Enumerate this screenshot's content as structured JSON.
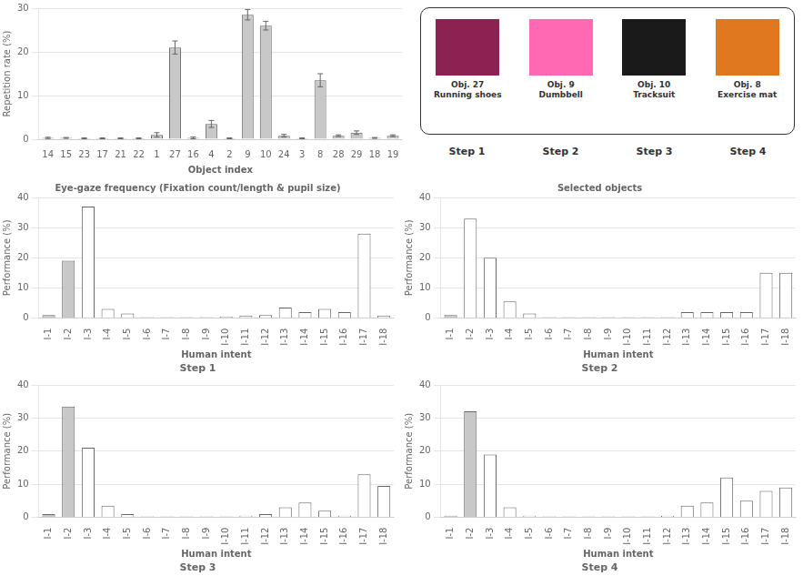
{
  "chart_data": [
    {
      "type": "bar",
      "categories": [
        "14",
        "15",
        "23",
        "17",
        "21",
        "22",
        "1",
        "27",
        "16",
        "4",
        "2",
        "9",
        "10",
        "24",
        "3",
        "8",
        "28",
        "29",
        "18",
        "19"
      ],
      "values": [
        0.3,
        0.3,
        0.2,
        0.2,
        0.2,
        0.2,
        1.0,
        21.0,
        0.3,
        3.5,
        0.2,
        28.5,
        26.0,
        0.8,
        0.2,
        13.5,
        0.8,
        1.5,
        0.3,
        0.8
      ],
      "errors": [
        0.15,
        0.1,
        0.1,
        0.1,
        0.1,
        0.1,
        0.5,
        1.5,
        0.2,
        0.8,
        0.1,
        1.2,
        1.0,
        0.3,
        0.1,
        1.5,
        0.2,
        0.4,
        0.1,
        0.2
      ],
      "color": "#c8c8c8",
      "xlabel": "Object index",
      "ylabel": "Repetition rate (%)",
      "ylim": [
        0,
        30
      ],
      "yticks": [
        0,
        10,
        20,
        30
      ],
      "grid": true
    },
    {
      "type": "legend_panel",
      "categories": [
        "Obj. 27\nRunning shoes",
        "Obj. 9\nDumbbell",
        "Obj. 10\nTracksuit",
        "Obj. 8\nExercise mat"
      ],
      "colors": [
        "#8B2252",
        "#FF69B4",
        "#1a1a1a",
        "#E07820"
      ],
      "annotations": [
        "Step 1",
        "Step 2",
        "Step 3",
        "Step 4"
      ]
    },
    {
      "type": "bar",
      "title": "Eye-gaze frequency (Fixation count/length & pupil size)",
      "categories": [
        "I-1",
        "I-2",
        "I-3",
        "I-4",
        "I-5",
        "I-6",
        "I-7",
        "I-8",
        "I-9",
        "I-10",
        "I-11",
        "I-12",
        "I-13",
        "I-14",
        "I-15",
        "I-16",
        "I-17",
        "I-18"
      ],
      "values": [
        1.0,
        19.0,
        37.0,
        3.0,
        1.5,
        0.3,
        0.3,
        0.3,
        0.3,
        0.5,
        0.8,
        1.0,
        3.5,
        2.0,
        3.0,
        2.0,
        28.0,
        0.8
      ],
      "colors": [
        "#c8c8c8",
        "#c8c8c8",
        "#ffffff",
        "#ffffff",
        "#ffffff",
        "#ffffff",
        "#ffffff",
        "#ffffff",
        "#ffffff",
        "#ffffff",
        "#ffffff",
        "#ffffff",
        "#ffffff",
        "#ffffff",
        "#ffffff",
        "#ffffff",
        "#ffffff",
        "#ffffff"
      ],
      "xlabel": "Human intent",
      "ylabel": "Performance (%)",
      "ylim": [
        0,
        40
      ],
      "yticks": [
        0,
        10,
        20,
        30,
        40
      ],
      "grid": true,
      "annotations": [
        "Step 1"
      ]
    },
    {
      "type": "bar",
      "title": "Selected objects",
      "categories": [
        "I-1",
        "I-2",
        "I-3",
        "I-4",
        "I-5",
        "I-6",
        "I-7",
        "I-8",
        "I-9",
        "I-10",
        "I-11",
        "I-12",
        "I-13",
        "I-14",
        "I-15",
        "I-16",
        "I-17",
        "I-18"
      ],
      "values": [
        1.0,
        33.0,
        20.0,
        5.5,
        1.5,
        0.3,
        0.3,
        0.3,
        0.3,
        0.3,
        0.3,
        0.3,
        2.0,
        2.0,
        2.0,
        2.0,
        15.0,
        15.0
      ],
      "colors": [
        "#c8c8c8",
        "#ffffff",
        "#ffffff",
        "#ffffff",
        "#ffffff",
        "#ffffff",
        "#ffffff",
        "#ffffff",
        "#ffffff",
        "#ffffff",
        "#ffffff",
        "#ffffff",
        "#ffffff",
        "#ffffff",
        "#ffffff",
        "#ffffff",
        "#ffffff",
        "#ffffff"
      ],
      "xlabel": "Human intent",
      "ylabel": "Performance (%)",
      "ylim": [
        0,
        40
      ],
      "yticks": [
        0,
        10,
        20,
        30,
        40
      ],
      "grid": true,
      "annotations": [
        "Step 2"
      ]
    },
    {
      "type": "bar",
      "categories": [
        "I-1",
        "I-2",
        "I-3",
        "I-4",
        "I-5",
        "I-6",
        "I-7",
        "I-8",
        "I-9",
        "I-10",
        "I-11",
        "I-12",
        "I-13",
        "I-14",
        "I-15",
        "I-16",
        "I-17",
        "I-18"
      ],
      "values": [
        1.0,
        33.5,
        21.0,
        3.5,
        1.0,
        0.3,
        0.3,
        0.3,
        0.3,
        0.3,
        0.5,
        1.0,
        3.0,
        4.5,
        2.0,
        0.5,
        13.0,
        9.5
      ],
      "colors": [
        "#c8c8c8",
        "#c8c8c8",
        "#ffffff",
        "#ffffff",
        "#ffffff",
        "#ffffff",
        "#ffffff",
        "#ffffff",
        "#ffffff",
        "#ffffff",
        "#ffffff",
        "#ffffff",
        "#ffffff",
        "#ffffff",
        "#ffffff",
        "#ffffff",
        "#ffffff",
        "#ffffff"
      ],
      "xlabel": "Human intent",
      "ylabel": "Performance (%)",
      "ylim": [
        0,
        40
      ],
      "yticks": [
        0,
        10,
        20,
        30,
        40
      ],
      "grid": true,
      "annotations": [
        "Step 3"
      ]
    },
    {
      "type": "bar",
      "categories": [
        "I-1",
        "I-2",
        "I-3",
        "I-4",
        "I-5",
        "I-6",
        "I-7",
        "I-8",
        "I-9",
        "I-10",
        "I-11",
        "I-12",
        "I-13",
        "I-14",
        "I-15",
        "I-16",
        "I-17",
        "I-18"
      ],
      "values": [
        0.5,
        32.0,
        19.0,
        3.0,
        0.5,
        0.3,
        0.3,
        0.3,
        0.3,
        0.3,
        0.3,
        0.5,
        3.5,
        4.5,
        12.0,
        5.0,
        8.0,
        9.0
      ],
      "colors": [
        "#c8c8c8",
        "#c8c8c8",
        "#ffffff",
        "#ffffff",
        "#ffffff",
        "#ffffff",
        "#ffffff",
        "#ffffff",
        "#ffffff",
        "#ffffff",
        "#ffffff",
        "#ffffff",
        "#ffffff",
        "#ffffff",
        "#ffffff",
        "#ffffff",
        "#ffffff",
        "#ffffff"
      ],
      "xlabel": "Human intent",
      "ylabel": "Performance (%)",
      "ylim": [
        0,
        40
      ],
      "yticks": [
        0,
        10,
        20,
        30,
        40
      ],
      "grid": true,
      "annotations": [
        "Step 4"
      ]
    }
  ]
}
